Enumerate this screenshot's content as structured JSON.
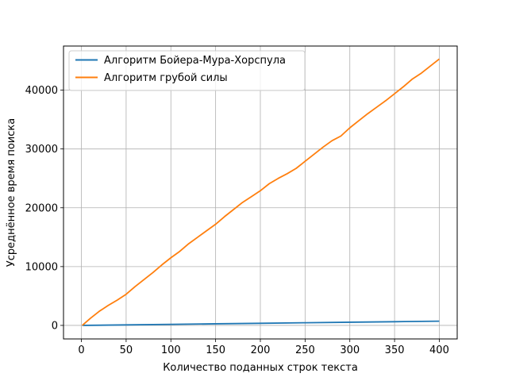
{
  "chart_data": {
    "type": "line",
    "title": "",
    "xlabel": "Количество поданных строк текста",
    "ylabel": "Усреднённое время поиска",
    "xlim": [
      -20,
      420
    ],
    "ylim": [
      -2300,
      47500
    ],
    "grid": true,
    "legend_position": "top-left",
    "x_ticks": [
      0,
      50,
      100,
      150,
      200,
      250,
      300,
      350,
      400
    ],
    "y_ticks": [
      0,
      10000,
      20000,
      30000,
      40000
    ],
    "series": [
      {
        "name": "Алгоритм Бойера-Мура-Хорспула",
        "color": "#1f77b4",
        "x": [
          1,
          50,
          100,
          150,
          200,
          250,
          300,
          350,
          400
        ],
        "y": [
          0,
          90,
          180,
          270,
          360,
          450,
          540,
          630,
          720
        ]
      },
      {
        "name": "Алгоритм грубой силы",
        "color": "#ff7f0e",
        "x": [
          1,
          10,
          20,
          30,
          40,
          50,
          60,
          70,
          80,
          90,
          100,
          110,
          120,
          130,
          140,
          150,
          160,
          170,
          180,
          190,
          200,
          210,
          220,
          230,
          240,
          250,
          260,
          270,
          280,
          290,
          300,
          310,
          320,
          330,
          340,
          350,
          360,
          370,
          380,
          390,
          400
        ],
        "y": [
          0,
          1200,
          2400,
          3400,
          4300,
          5300,
          6600,
          7800,
          9000,
          10300,
          11500,
          12600,
          13900,
          15000,
          16100,
          17200,
          18500,
          19700,
          20900,
          21900,
          22900,
          24100,
          25000,
          25800,
          26700,
          27900,
          29100,
          30300,
          31400,
          32200,
          33600,
          34800,
          36000,
          37100,
          38200,
          39400,
          40600,
          41900,
          42900,
          44100,
          45300
        ]
      }
    ]
  }
}
